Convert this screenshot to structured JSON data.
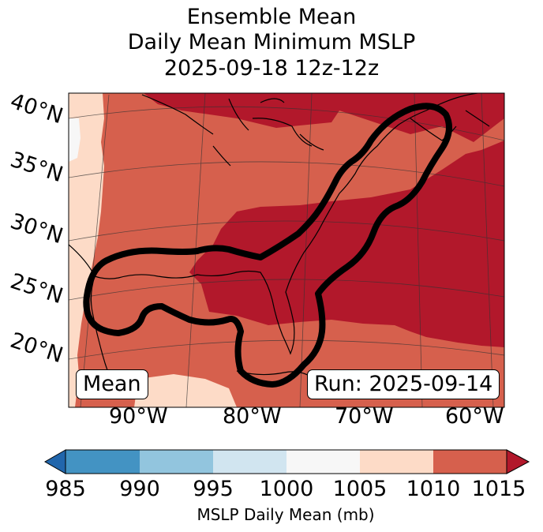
{
  "title": {
    "line1": "Ensemble Mean",
    "line2": "Daily Mean Minimum MSLP",
    "line3": "2025-09-18 12z-12z"
  },
  "map": {
    "lat_labels": [
      "40°N",
      "35°N",
      "30°N",
      "25°N",
      "20°N"
    ],
    "lon_labels": [
      "90°W",
      "80°W",
      "70°W",
      "60°W"
    ],
    "left_box": "Mean",
    "right_box": "Run: 2025-09-14",
    "colors": {
      "c985": "#2166ac",
      "c990": "#4393c3",
      "c995": "#92c5de",
      "c1000": "#d1e5f0",
      "c1005": "#f7f7f7",
      "c1010": "#fddbc7",
      "c1015": "#d6604d",
      "c1020": "#b2182b"
    }
  },
  "colorbar": {
    "ticks": [
      "985",
      "990",
      "995",
      "1000",
      "1005",
      "1010",
      "1015"
    ],
    "label": "MSLP Daily Mean (mb)"
  }
}
